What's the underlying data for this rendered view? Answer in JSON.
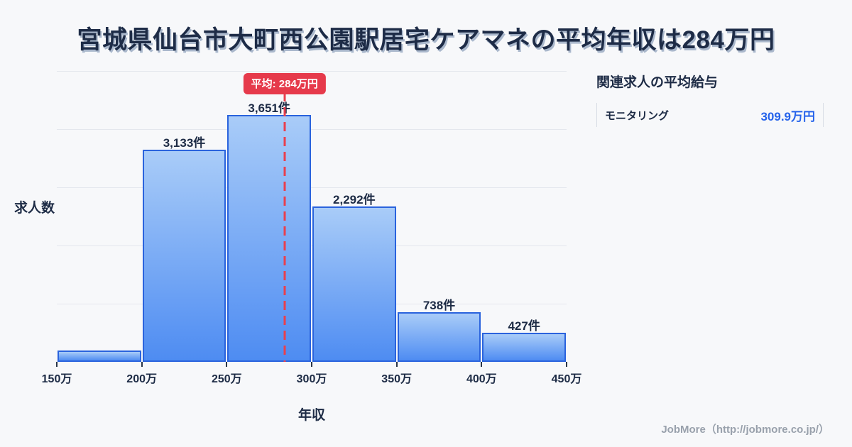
{
  "title": {
    "text": "宮城県仙台市大町西公園駅居宅ケアマネの平均年収は284万円"
  },
  "chart_data": {
    "type": "bar",
    "categories": [
      "150万-200万",
      "200万-250万",
      "250万-300万",
      "300万-350万",
      "350万-400万",
      "400万-450万"
    ],
    "values": [
      170,
      3133,
      3651,
      2292,
      738,
      427
    ],
    "bar_labels": [
      "",
      "3,133件",
      "3,651件",
      "2,292件",
      "738件",
      "427件"
    ],
    "x_tick_labels": [
      "150万",
      "200万",
      "250万",
      "300万",
      "350万",
      "400万",
      "450万"
    ],
    "xlabel": "年収",
    "ylabel": "求人数",
    "ylim": [
      0,
      4300
    ],
    "x_range_man_yen": [
      150,
      450
    ],
    "grid": true,
    "gridline_count": 5,
    "mean": {
      "badge_label": "平均: 284万円",
      "value_man_yen": 284
    },
    "colors": {
      "bar_top": "#a9ccf8",
      "bar_bottom": "#4e8cf2",
      "bar_border": "#2a63dd",
      "mean_line": "#e8404e",
      "badge_bg": "#e63a4b",
      "badge_text": "#ffffff",
      "grid": "#e4e7ed",
      "text": "#1d2b45",
      "background": "#f7f8fa"
    }
  },
  "side_panel": {
    "heading": "関連求人の平均給与",
    "rows": [
      {
        "label": "モニタリング",
        "value": "309.9万円"
      }
    ],
    "value_color": "#2563eb"
  },
  "footer": {
    "credit": "JobMore（http://jobmore.co.jp/）"
  }
}
